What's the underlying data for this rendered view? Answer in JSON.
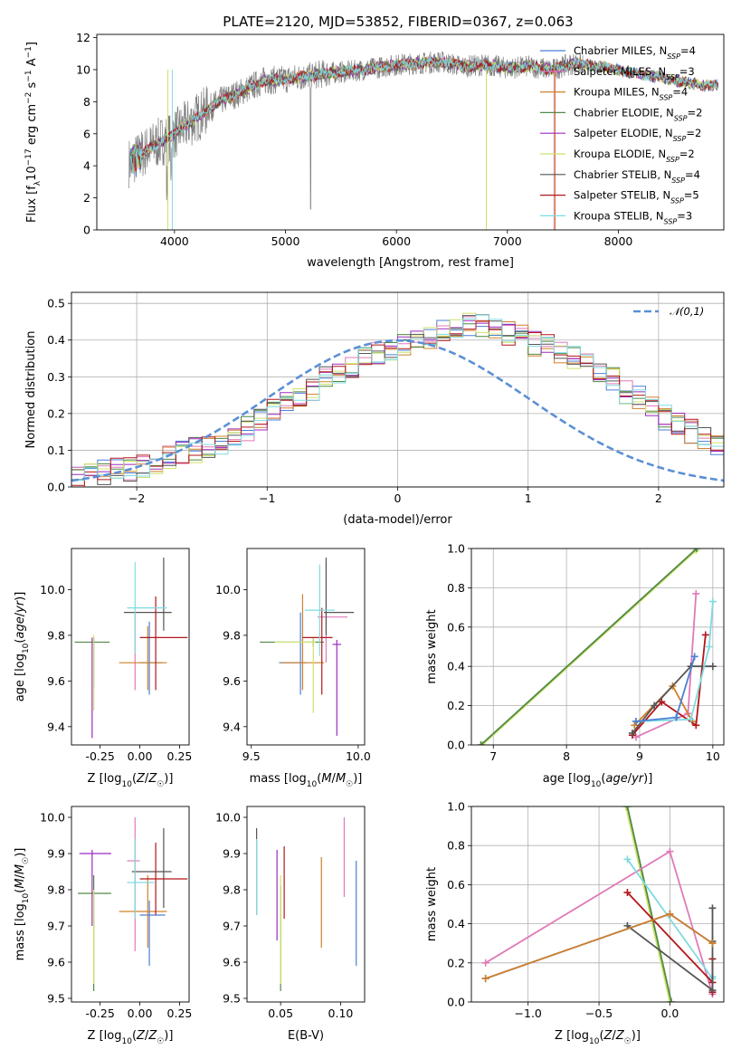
{
  "title": "PLATE=2120, MJD=53852, FIBERID=0367, z=0.063",
  "colors": {
    "chabrier_miles": "#4a7fd6",
    "salpeter_miles": "#e07ab8",
    "kroupa_miles": "#d0802a",
    "chabrier_elodie": "#4f8a45",
    "salpeter_elodie": "#9b2bbf",
    "kroupa_elodie": "#cfe26a",
    "chabrier_stelib": "#555555",
    "salpeter_stelib": "#b3171b",
    "kroupa_stelib": "#7fdbe0",
    "data_gray": "#808080",
    "normal_curve": "#5b8fd6"
  },
  "chart_data": [
    {
      "id": "spectrum",
      "type": "line",
      "xlabel": "wavelength [Angstrom, rest frame]",
      "ylabel": "Flux [f_λ10^-17 erg cm^-2 s^-1 A^-1]",
      "xlim": [
        3300,
        8950
      ],
      "ylim": [
        0,
        12.2
      ],
      "xticks": [
        4000,
        5000,
        6000,
        7000,
        8000
      ],
      "yticks": [
        0,
        2,
        4,
        6,
        8,
        10,
        12
      ],
      "legend_position": "upper right",
      "series": [
        {
          "name": "Chabrier MILES, N_SSP=4",
          "color": "#4a7fd6"
        },
        {
          "name": "Salpeter MILES, N_SSP=3",
          "color": "#e07ab8"
        },
        {
          "name": "Kroupa MILES, N_SSP=4",
          "color": "#d0802a"
        },
        {
          "name": "Chabrier ELODIE, N_SSP=2",
          "color": "#4f8a45"
        },
        {
          "name": "Salpeter ELODIE, N_SSP=2",
          "color": "#9b2bbf"
        },
        {
          "name": "Kroupa ELODIE, N_SSP=2",
          "color": "#cfe26a"
        },
        {
          "name": "Chabrier STELIB, N_SSP=4",
          "color": "#555555"
        },
        {
          "name": "Salpeter STELIB, N_SSP=5",
          "color": "#b3171b"
        },
        {
          "name": "Kroupa STELIB, N_SSP=3",
          "color": "#7fdbe0"
        }
      ],
      "continuum": {
        "x": [
          3600,
          3800,
          4000,
          4200,
          4400,
          4600,
          4800,
          5000,
          5200,
          5400,
          5600,
          5800,
          6000,
          6200,
          6400,
          6600,
          6800,
          7000,
          7200,
          7400,
          7600,
          7800,
          8000,
          8200,
          8400,
          8600,
          8800
        ],
        "y": [
          4.2,
          5.2,
          6.0,
          7.0,
          8.0,
          8.6,
          9.3,
          9.4,
          9.6,
          9.8,
          9.9,
          10.1,
          10.3,
          10.4,
          10.5,
          10.2,
          10.3,
          10.1,
          10.2,
          10.0,
          10.4,
          10.2,
          10.0,
          9.7,
          9.5,
          9.2,
          9.0
        ]
      },
      "legend_entries": [
        {
          "prefix": "Chabrier MILES, N",
          "sub": "SSP",
          "suffix": "=4"
        },
        {
          "prefix": "Salpeter MILES, N",
          "sub": "SSP",
          "suffix": "=3"
        },
        {
          "prefix": "Kroupa MILES, N",
          "sub": "SSP",
          "suffix": "=4"
        },
        {
          "prefix": "Chabrier ELODIE, N",
          "sub": "SSP",
          "suffix": "=2"
        },
        {
          "prefix": "Salpeter ELODIE, N",
          "sub": "SSP",
          "suffix": "=2"
        },
        {
          "prefix": "Kroupa ELODIE, N",
          "sub": "SSP",
          "suffix": "=2"
        },
        {
          "prefix": "Chabrier STELIB, N",
          "sub": "SSP",
          "suffix": "=4"
        },
        {
          "prefix": "Salpeter STELIB, N",
          "sub": "SSP",
          "suffix": "=5"
        },
        {
          "prefix": "Kroupa STELIB, N",
          "sub": "SSP",
          "suffix": "=3"
        }
      ]
    },
    {
      "id": "residuals",
      "type": "line",
      "xlabel": "(data-model)/error",
      "ylabel": "Normed distribution",
      "xlim": [
        -2.5,
        2.5
      ],
      "ylim": [
        0,
        0.53
      ],
      "xticks": [
        -2,
        -1,
        0,
        1,
        2
      ],
      "yticks": [
        0,
        0.1,
        0.2,
        0.3,
        0.4,
        0.5
      ],
      "legend": "𝒩(0,1)",
      "legend_position": "upper right",
      "bin_width": 0.1,
      "histogram_values": [
        0.02,
        0.03,
        0.04,
        0.05,
        0.05,
        0.06,
        0.07,
        0.08,
        0.09,
        0.1,
        0.11,
        0.12,
        0.14,
        0.16,
        0.18,
        0.21,
        0.23,
        0.25,
        0.27,
        0.3,
        0.31,
        0.33,
        0.35,
        0.36,
        0.38,
        0.39,
        0.4,
        0.41,
        0.42,
        0.43,
        0.44,
        0.44,
        0.43,
        0.42,
        0.41,
        0.39,
        0.38,
        0.37,
        0.35,
        0.33,
        0.31,
        0.29,
        0.26,
        0.24,
        0.22,
        0.19,
        0.17,
        0.15,
        0.13,
        0.11,
        0.09,
        0.08,
        0.07,
        0.06,
        0.05,
        0.05,
        0.04,
        0.04,
        0.03,
        0.03
      ],
      "histogram_x_start": -2.5
    },
    {
      "id": "age_vs_Z",
      "type": "scatter",
      "xlabel": "Z [log10(Z/Z☉)]",
      "ylabel": "age [log10(age/yr)]",
      "xlim": [
        -0.43,
        0.31
      ],
      "ylim": [
        9.32,
        10.18
      ],
      "xticks": [
        -0.25,
        0.0,
        0.25
      ],
      "yticks": [
        9.4,
        9.6,
        9.8,
        10.0
      ],
      "points": [
        {
          "color": "#4a7fd6",
          "x": 0.06,
          "y": 9.68,
          "xerr": [
            0.06,
            0.08
          ],
          "yerr": [
            0.14,
            0.18
          ]
        },
        {
          "color": "#e07ab8",
          "x": -0.03,
          "y": 9.76,
          "xerr": [
            0.0,
            0.0
          ],
          "yerr": [
            0.2,
            0.14
          ]
        },
        {
          "color": "#d0802a",
          "x": 0.05,
          "y": 9.68,
          "xerr": [
            0.18,
            0.12
          ],
          "yerr": [
            0.12,
            0.16
          ]
        },
        {
          "color": "#4f8a45",
          "x": -0.29,
          "y": 9.77,
          "xerr": [
            0.12,
            0.1
          ],
          "yerr": [
            0.2,
            0.02
          ]
        },
        {
          "color": "#9b2bbf",
          "x": -0.3,
          "y": 9.77,
          "xerr": [
            0.0,
            0.0
          ],
          "yerr": [
            0.42,
            0.02
          ]
        },
        {
          "color": "#cfe26a",
          "x": -0.29,
          "y": 9.77,
          "xerr": [
            0.0,
            0.0
          ],
          "yerr": [
            0.3,
            0.03
          ]
        },
        {
          "color": "#555555",
          "x": 0.15,
          "y": 9.9,
          "xerr": [
            0.25,
            0.05
          ],
          "yerr": [
            0.08,
            0.24
          ]
        },
        {
          "color": "#b3171b",
          "x": 0.1,
          "y": 9.79,
          "xerr": [
            0.1,
            0.2
          ],
          "yerr": [
            0.23,
            0.18
          ]
        },
        {
          "color": "#7fdbe0",
          "x": -0.03,
          "y": 9.92,
          "xerr": [
            0.05,
            0.2
          ],
          "yerr": [
            0.2,
            0.2
          ]
        }
      ]
    },
    {
      "id": "age_vs_mass",
      "type": "scatter",
      "xlabel": "mass [log10(M/M☉)]",
      "ylabel": "",
      "xlim": [
        9.48,
        10.03
      ],
      "ylim": [
        9.32,
        10.18
      ],
      "xticks": [
        9.5,
        10.0
      ],
      "yticks": [
        9.4,
        9.6,
        9.8,
        10.0
      ],
      "points": [
        {
          "color": "#4a7fd6",
          "x": 9.73,
          "y": 9.68,
          "xerr": [
            0.1,
            0.03
          ],
          "yerr": [
            0.14,
            0.22
          ]
        },
        {
          "color": "#e07ab8",
          "x": 9.85,
          "y": 9.88,
          "xerr": [
            0.04,
            0.1
          ],
          "yerr": [
            0.2,
            0.24
          ]
        },
        {
          "color": "#d0802a",
          "x": 9.74,
          "y": 9.68,
          "xerr": [
            0.1,
            0.1
          ],
          "yerr": [
            0.12,
            0.3
          ]
        },
        {
          "color": "#4f8a45",
          "x": 9.79,
          "y": 9.77,
          "xerr": [
            0.25,
            0.05
          ],
          "yerr": [
            0.02,
            0.02
          ]
        },
        {
          "color": "#9b2bbf",
          "x": 9.9,
          "y": 9.76,
          "xerr": [
            0.02,
            0.02
          ],
          "yerr": [
            0.4,
            0.02
          ]
        },
        {
          "color": "#cfe26a",
          "x": 9.79,
          "y": 9.77,
          "xerr": [
            0.18,
            0.01
          ],
          "yerr": [
            0.31,
            0.02
          ]
        },
        {
          "color": "#555555",
          "x": 9.85,
          "y": 9.9,
          "xerr": [
            0.01,
            0.13
          ],
          "yerr": [
            0.1,
            0.24
          ]
        },
        {
          "color": "#b3171b",
          "x": 9.83,
          "y": 9.79,
          "xerr": [
            0.09,
            0.05
          ],
          "yerr": [
            0.25,
            0.13
          ]
        },
        {
          "color": "#7fdbe0",
          "x": 9.82,
          "y": 9.91,
          "xerr": [
            0.07,
            0.07
          ],
          "yerr": [
            0.2,
            0.2
          ]
        }
      ]
    },
    {
      "id": "weight_vs_age",
      "type": "line",
      "xlabel": "age [log10(age/yr)]",
      "ylabel": "mass weight",
      "xlim": [
        6.7,
        10.15
      ],
      "ylim": [
        0,
        1.0
      ],
      "xticks": [
        7,
        8,
        9,
        10
      ],
      "yticks": [
        0,
        0.2,
        0.4,
        0.6,
        0.8,
        1.0
      ],
      "series": [
        {
          "color": "#cfe26a",
          "x": [
            6.85,
            9.77
          ],
          "y": [
            0.0,
            0.99
          ]
        },
        {
          "color": "#4f8a45",
          "x": [
            6.83,
            9.78
          ],
          "y": [
            0.0,
            1.0
          ]
        },
        {
          "color": "#e07ab8",
          "x": [
            8.95,
            9.66,
            9.77
          ],
          "y": [
            0.04,
            0.16,
            0.77
          ]
        },
        {
          "color": "#d0802a",
          "x": [
            8.93,
            9.45,
            9.72
          ],
          "y": [
            0.1,
            0.3,
            0.12
          ]
        },
        {
          "color": "#b3171b",
          "x": [
            8.9,
            9.3,
            9.77,
            9.9
          ],
          "y": [
            0.05,
            0.22,
            0.1,
            0.56
          ]
        },
        {
          "color": "#555555",
          "x": [
            8.9,
            9.2,
            9.7,
            10.0
          ],
          "y": [
            0.06,
            0.2,
            0.4,
            0.4
          ]
        },
        {
          "color": "#7fdbe0",
          "x": [
            8.95,
            9.7,
            9.95,
            10.0
          ],
          "y": [
            0.12,
            0.13,
            0.5,
            0.73
          ]
        },
        {
          "color": "#4a7fd6",
          "x": [
            8.95,
            9.5,
            9.75
          ],
          "y": [
            0.12,
            0.14,
            0.45
          ]
        }
      ]
    },
    {
      "id": "mass_vs_Z",
      "type": "scatter",
      "xlabel": "Z [log10(Z/Z☉)]",
      "ylabel": "mass [log10(M/M☉)]",
      "xlim": [
        -0.43,
        0.31
      ],
      "ylim": [
        9.49,
        10.03
      ],
      "xticks": [
        -0.25,
        0.0,
        0.25
      ],
      "yticks": [
        9.5,
        9.6,
        9.7,
        9.8,
        9.9,
        10.0
      ],
      "points": [
        {
          "color": "#4a7fd6",
          "x": 0.06,
          "y": 9.73,
          "xerr": [
            0.06,
            0.1
          ],
          "yerr": [
            0.14,
            0.04
          ]
        },
        {
          "color": "#e07ab8",
          "x": -0.03,
          "y": 9.88,
          "xerr": [
            0.05,
            0.03
          ],
          "yerr": [
            0.25,
            0.12
          ]
        },
        {
          "color": "#d0802a",
          "x": 0.05,
          "y": 9.74,
          "xerr": [
            0.18,
            0.12
          ],
          "yerr": [
            0.1,
            0.1
          ]
        },
        {
          "color": "#4f8a45",
          "x": -0.29,
          "y": 9.79,
          "xerr": [
            0.1,
            0.11
          ],
          "yerr": [
            0.27,
            0.05
          ]
        },
        {
          "color": "#9b2bbf",
          "x": -0.3,
          "y": 9.9,
          "xerr": [
            0.08,
            0.12
          ],
          "yerr": [
            0.2,
            0.01
          ]
        },
        {
          "color": "#cfe26a",
          "x": -0.29,
          "y": 9.79,
          "xerr": [
            0.0,
            0.0
          ],
          "yerr": [
            0.25,
            0.01
          ]
        },
        {
          "color": "#555555",
          "x": 0.15,
          "y": 9.85,
          "xerr": [
            0.2,
            0.05
          ],
          "yerr": [
            0.1,
            0.12
          ]
        },
        {
          "color": "#b3171b",
          "x": 0.1,
          "y": 9.83,
          "xerr": [
            0.1,
            0.2
          ],
          "yerr": [
            0.1,
            0.1
          ]
        },
        {
          "color": "#7fdbe0",
          "x": -0.03,
          "y": 9.82,
          "xerr": [
            0.05,
            0.12
          ],
          "yerr": [
            0.1,
            0.12
          ]
        }
      ]
    },
    {
      "id": "mass_vs_ebv",
      "type": "scatter",
      "xlabel": "E(B-V)",
      "ylabel": "",
      "xlim": [
        0.022,
        0.12
      ],
      "ylim": [
        9.49,
        10.03
      ],
      "xticks": [
        0.05,
        0.1
      ],
      "yticks": [
        9.5,
        9.6,
        9.7,
        9.8,
        9.9,
        10.0
      ],
      "points": [
        {
          "color": "#4a7fd6",
          "x": 0.113,
          "y": 9.73,
          "xerr": [
            0,
            0
          ],
          "yerr": [
            0.14,
            0.15
          ]
        },
        {
          "color": "#e07ab8",
          "x": 0.103,
          "y": 9.88,
          "xerr": [
            0,
            0
          ],
          "yerr": [
            0.1,
            0.12
          ]
        },
        {
          "color": "#d0802a",
          "x": 0.084,
          "y": 9.74,
          "xerr": [
            0,
            0
          ],
          "yerr": [
            0.1,
            0.15
          ]
        },
        {
          "color": "#4f8a45",
          "x": 0.05,
          "y": 9.79,
          "xerr": [
            0,
            0
          ],
          "yerr": [
            0.27,
            0.02
          ]
        },
        {
          "color": "#9b2bbf",
          "x": 0.047,
          "y": 9.78,
          "xerr": [
            0,
            0
          ],
          "yerr": [
            0.12,
            0.13
          ]
        },
        {
          "color": "#cfe26a",
          "x": 0.05,
          "y": 9.79,
          "xerr": [
            0,
            0
          ],
          "yerr": [
            0.25,
            0.05
          ]
        },
        {
          "color": "#555555",
          "x": 0.03,
          "y": 9.85,
          "xerr": [
            0,
            0
          ],
          "yerr": [
            0.12,
            0.12
          ]
        },
        {
          "color": "#b3171b",
          "x": 0.053,
          "y": 9.82,
          "xerr": [
            0,
            0
          ],
          "yerr": [
            0.1,
            0.1
          ]
        },
        {
          "color": "#7fdbe0",
          "x": 0.03,
          "y": 9.83,
          "xerr": [
            0,
            0
          ],
          "yerr": [
            0.1,
            0.11
          ]
        }
      ]
    },
    {
      "id": "weight_vs_Z",
      "type": "line",
      "xlabel": "Z [log10(Z/Z☉)]",
      "ylabel": "mass weight",
      "xlim": [
        -1.4,
        0.38
      ],
      "ylim": [
        0,
        1.0
      ],
      "xticks": [
        -1.0,
        -0.5,
        0.0
      ],
      "yticks": [
        0,
        0.2,
        0.4,
        0.6,
        0.8,
        1.0
      ],
      "series": [
        {
          "color": "#cfe26a",
          "x": [
            -0.31,
            0.0
          ],
          "y": [
            1.0,
            0.0
          ]
        },
        {
          "color": "#4f8a45",
          "x": [
            -0.3,
            0.01
          ],
          "y": [
            1.0,
            0.0
          ]
        },
        {
          "color": "#e07ab8",
          "x": [
            -1.3,
            0.0,
            0.3
          ],
          "y": [
            0.2,
            0.77,
            0.04
          ]
        },
        {
          "color": "#7fdbe0",
          "x": [
            -0.3,
            0.3,
            0.3
          ],
          "y": [
            0.73,
            0.12,
            0.13
          ]
        },
        {
          "color": "#b3171b",
          "x": [
            -0.3,
            0.3,
            0.3,
            0.3
          ],
          "y": [
            0.56,
            0.1,
            0.22,
            0.05
          ]
        },
        {
          "color": "#555555",
          "x": [
            -0.3,
            0.3,
            0.3,
            0.3
          ],
          "y": [
            0.39,
            0.06,
            0.31,
            0.48
          ]
        },
        {
          "color": "#4a7fd6",
          "x": [
            -1.3,
            0.0,
            0.3
          ],
          "y": [
            0.12,
            0.45,
            0.3
          ]
        },
        {
          "color": "#d0802a",
          "x": [
            -1.3,
            0.0,
            0.3
          ],
          "y": [
            0.12,
            0.45,
            0.3
          ]
        }
      ]
    }
  ]
}
